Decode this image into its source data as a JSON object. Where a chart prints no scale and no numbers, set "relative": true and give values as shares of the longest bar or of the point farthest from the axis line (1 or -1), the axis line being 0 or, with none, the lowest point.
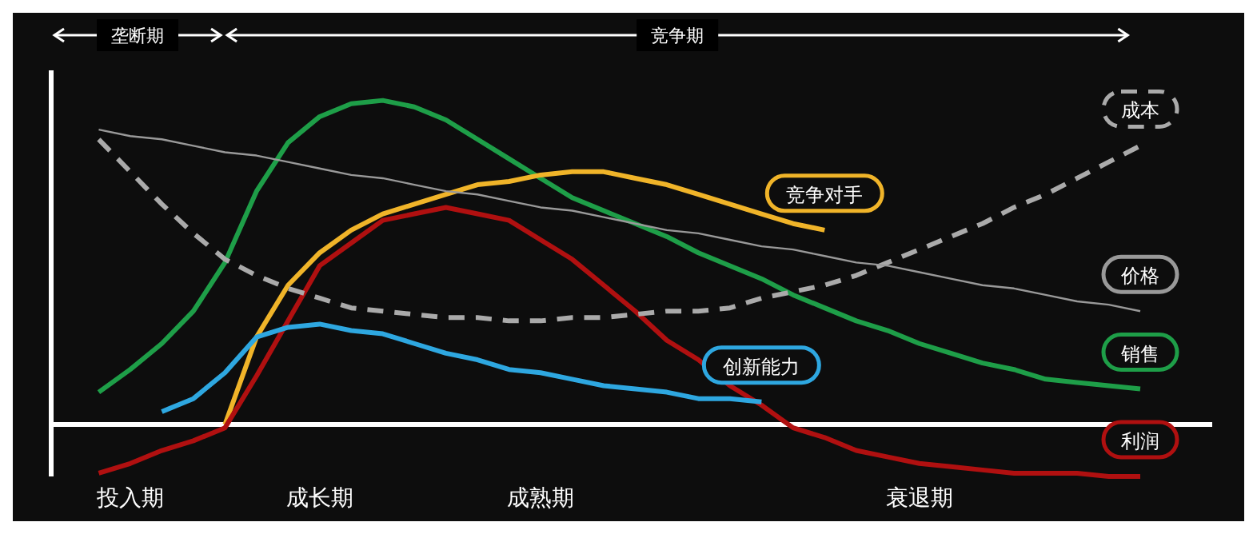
{
  "chart_data": {
    "type": "line",
    "relative": true,
    "marker": "none",
    "categories": [
      null,
      null,
      "投入期",
      null,
      null,
      null,
      null,
      null,
      "成长期",
      null,
      null,
      null,
      null,
      null,
      null,
      "成熟期",
      null,
      null,
      null,
      null,
      null,
      null,
      null,
      null,
      null,
      null,
      null,
      "衰退期",
      null,
      null,
      null,
      null,
      null,
      null,
      null
    ],
    "annotations": [
      "垄断期",
      "竞争期"
    ],
    "series": [
      {
        "name": "销售",
        "color": "#1e9e48",
        "values": [
          null,
          0.1,
          0.17,
          0.25,
          0.35,
          0.5,
          0.72,
          0.87,
          0.95,
          0.99,
          1.0,
          0.98,
          0.94,
          0.88,
          0.82,
          0.76,
          0.7,
          0.66,
          0.62,
          0.58,
          0.53,
          0.49,
          0.45,
          0.4,
          0.36,
          0.32,
          0.29,
          0.25,
          0.22,
          0.19,
          0.17,
          0.14,
          0.13,
          0.12,
          0.11
        ]
      },
      {
        "name": "竞争对手",
        "color": "#f0b429",
        "values": [
          null,
          null,
          null,
          null,
          null,
          0,
          0.27,
          0.43,
          0.53,
          0.6,
          0.65,
          0.68,
          0.71,
          0.74,
          0.75,
          0.77,
          0.78,
          0.78,
          0.76,
          0.74,
          0.71,
          0.68,
          0.65,
          0.62,
          0.6,
          null,
          null,
          null,
          null,
          null,
          null,
          null,
          null,
          null,
          null
        ]
      },
      {
        "name": "利润",
        "color": "#b01010",
        "values": [
          null,
          -0.15,
          -0.12,
          -0.08,
          -0.05,
          -0.01,
          0.15,
          0.32,
          0.49,
          0.56,
          0.63,
          0.65,
          0.67,
          0.65,
          0.63,
          0.57,
          0.51,
          0.43,
          0.35,
          0.26,
          0.2,
          0.12,
          0.06,
          -0.01,
          -0.04,
          -0.08,
          -0.1,
          -0.12,
          -0.13,
          -0.14,
          -0.15,
          -0.15,
          -0.15,
          -0.16,
          -0.16
        ]
      },
      {
        "name": "创新能力",
        "color": "#2ea7e0",
        "values": [
          null,
          null,
          null,
          0.04,
          0.08,
          0.16,
          0.27,
          0.3,
          0.31,
          0.29,
          0.28,
          0.25,
          0.22,
          0.2,
          0.17,
          0.16,
          0.14,
          0.12,
          0.11,
          0.1,
          0.08,
          0.08,
          0.07,
          null,
          null,
          null,
          null,
          null,
          null,
          null,
          null,
          null,
          null,
          null,
          null
        ]
      },
      {
        "name": "成本",
        "color": "#aaaaaa",
        "line_style": "dashed",
        "values": [
          null,
          0.88,
          0.78,
          0.68,
          0.59,
          0.51,
          0.46,
          0.42,
          0.39,
          0.36,
          0.35,
          0.34,
          0.33,
          0.33,
          0.32,
          0.32,
          0.33,
          0.33,
          0.34,
          0.35,
          0.35,
          0.36,
          0.39,
          0.41,
          0.43,
          0.46,
          0.5,
          0.54,
          0.58,
          0.62,
          0.67,
          0.71,
          0.76,
          0.81,
          0.86
        ]
      },
      {
        "name": "价格",
        "color": "#999999",
        "values": [
          null,
          0.91,
          0.89,
          0.88,
          0.86,
          0.84,
          0.83,
          0.81,
          0.79,
          0.77,
          0.76,
          0.74,
          0.72,
          0.71,
          0.69,
          0.67,
          0.66,
          0.64,
          0.62,
          0.6,
          0.59,
          0.57,
          0.55,
          0.54,
          0.52,
          0.5,
          0.49,
          0.47,
          0.45,
          0.43,
          0.42,
          0.4,
          0.38,
          0.37,
          0.35
        ]
      }
    ]
  }
}
